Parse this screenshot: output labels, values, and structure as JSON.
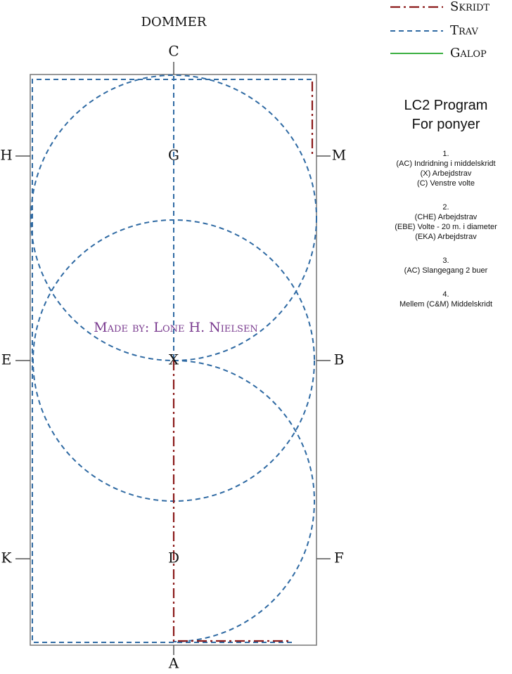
{
  "judge": "DOMMER",
  "legend": [
    "Skridt",
    "Trav",
    "Galop"
  ],
  "letters": {
    "C": "C",
    "H": "H",
    "G": "G",
    "M": "M",
    "E": "E",
    "X": "X",
    "B": "B",
    "K": "K",
    "D": "D",
    "F": "F",
    "A": "A"
  },
  "watermark": "Made by: Lone H. Nielsen",
  "program": {
    "title": "LC2 Program",
    "subtitle": "For ponyer",
    "sections": [
      {
        "number": "1.",
        "lines": [
          "(AC)  Indridning i middelskridt",
          "(X) Arbejdstrav",
          "(C) Venstre volte"
        ]
      },
      {
        "number": "2.",
        "lines": [
          "(CHE) Arbejdstrav",
          "(EBE) Volte - 20 m. i diameter",
          "(EKA) Arbejdstrav"
        ]
      },
      {
        "number": "3.",
        "lines": [
          "(AC) Slangegang 2 buer"
        ]
      },
      {
        "number": "4.",
        "lines": [
          "Mellem (C&M) Middelskridt"
        ]
      }
    ]
  }
}
